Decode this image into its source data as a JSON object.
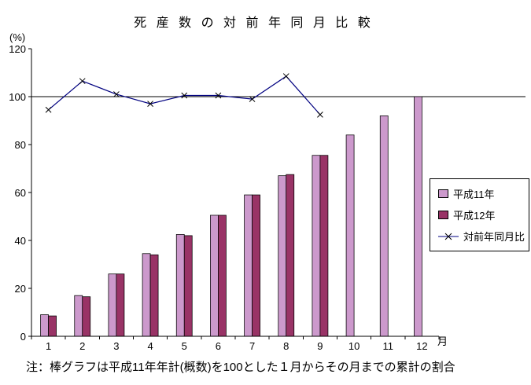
{
  "chart": {
    "title": "死 産 数 の 対 前 年 同 月 比 較",
    "y_unit": "(%)",
    "x_unit": "月",
    "note": "注：棒グラフは平成11年年計(概数)を100とした１月からその月までの累計の割合"
  },
  "chart_data": {
    "type": "bar+line",
    "title": "死産数の対前年同月比較",
    "xlabel": "月",
    "ylabel": "(%)",
    "categories": [
      1,
      2,
      3,
      4,
      5,
      6,
      7,
      8,
      9,
      10,
      11,
      12
    ],
    "series": [
      {
        "name": "平成11年",
        "type": "bar",
        "color": "#CC99CC",
        "values": [
          9,
          17,
          26,
          34.5,
          42.5,
          50.5,
          59,
          67,
          75.5,
          84,
          92,
          100
        ]
      },
      {
        "name": "平成12年",
        "type": "bar",
        "color": "#993366",
        "values": [
          8.5,
          16.5,
          26,
          34,
          42,
          50.5,
          59,
          67.5,
          75.5,
          null,
          null,
          null
        ]
      },
      {
        "name": "対前年同月比",
        "type": "line",
        "color": "#000080",
        "marker": "x",
        "values": [
          94.5,
          106.5,
          101,
          97,
          100.5,
          100.5,
          99,
          108.5,
          92.5,
          null,
          null,
          null
        ]
      }
    ],
    "ylim": [
      0,
      120
    ],
    "ytick_step": 20,
    "reference_line": 100,
    "grid": false,
    "legend_position": "right"
  }
}
